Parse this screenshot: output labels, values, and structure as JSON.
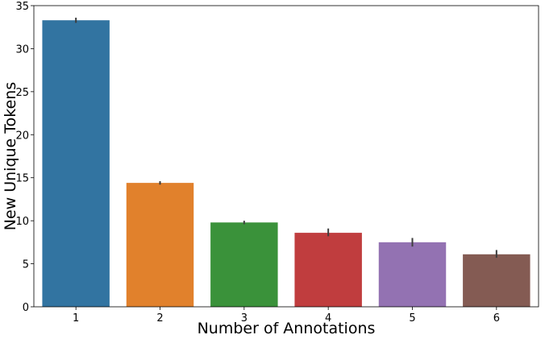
{
  "chart_data": {
    "type": "bar",
    "xlabel": "Number of Annotations",
    "ylabel": "New Unique Tokens",
    "categories": [
      "1",
      "2",
      "3",
      "4",
      "5",
      "6"
    ],
    "values": [
      33.3,
      14.4,
      9.8,
      8.6,
      7.5,
      6.1
    ],
    "error_low": [
      33.0,
      14.2,
      9.6,
      8.2,
      7.0,
      5.7
    ],
    "error_high": [
      33.6,
      14.6,
      10.0,
      9.1,
      8.0,
      6.6
    ],
    "ylim": [
      0,
      35
    ],
    "yticks": [
      0,
      5,
      10,
      15,
      20,
      25,
      30,
      35
    ],
    "colors": [
      "#3274a1",
      "#e1812c",
      "#3a923a",
      "#c03d3e",
      "#9372b2",
      "#845b53"
    ],
    "grid": false
  }
}
